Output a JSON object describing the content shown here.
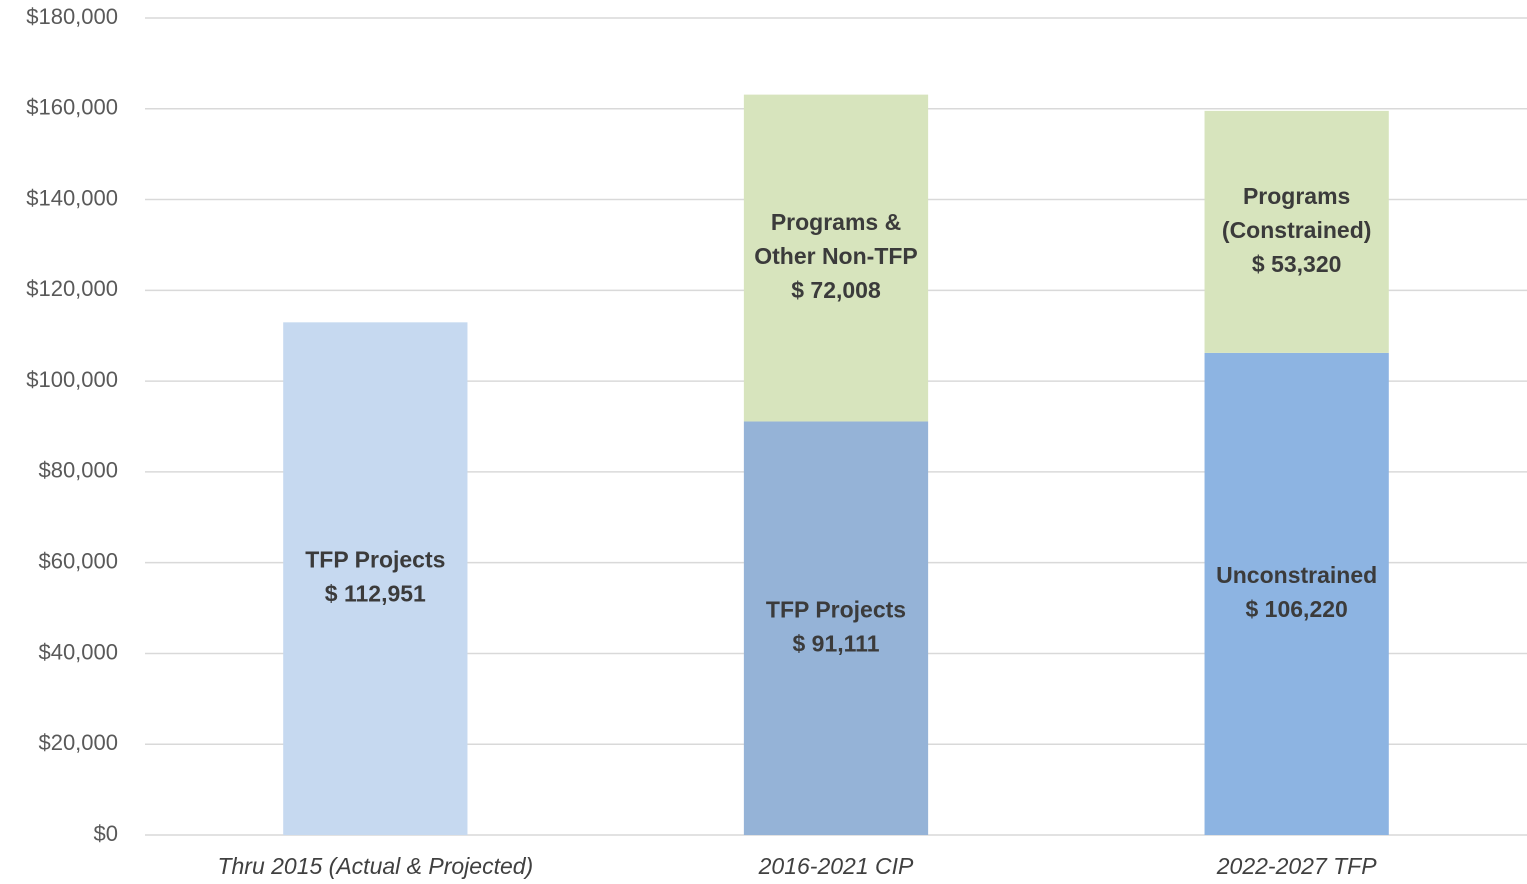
{
  "chart_data": {
    "type": "stacked_bar",
    "categories": [
      "Thru 2015 (Actual & Projected)",
      "2016-2021 CIP",
      "2022-2027 TFP"
    ],
    "bars": [
      {
        "segments": [
          {
            "name_lines": [
              "TFP Projects"
            ],
            "value": 112951,
            "value_label": "$ 112,951",
            "color": "#c6d9f0"
          }
        ]
      },
      {
        "segments": [
          {
            "name_lines": [
              "TFP Projects"
            ],
            "value": 91111,
            "value_label": "$ 91,111",
            "color": "#95b3d7"
          },
          {
            "name_lines": [
              "Programs &",
              "Other Non-TFP"
            ],
            "value": 72008,
            "value_label": "$ 72,008",
            "color": "#d7e4bd"
          }
        ]
      },
      {
        "segments": [
          {
            "name_lines": [
              "Unconstrained"
            ],
            "value": 106220,
            "value_label": "$ 106,220",
            "color": "#8db4e2"
          },
          {
            "name_lines": [
              "Programs",
              "(Constrained)"
            ],
            "value": 53320,
            "value_label": "$ 53,320",
            "color": "#d7e4bd"
          }
        ]
      }
    ],
    "ylim": [
      0,
      180000
    ],
    "yticks": [
      {
        "value": 0,
        "label": "$0"
      },
      {
        "value": 20000,
        "label": "$20,000"
      },
      {
        "value": 40000,
        "label": "$40,000"
      },
      {
        "value": 60000,
        "label": "$60,000"
      },
      {
        "value": 80000,
        "label": "$80,000"
      },
      {
        "value": 100000,
        "label": "$100,000"
      },
      {
        "value": 120000,
        "label": "$120,000"
      },
      {
        "value": 140000,
        "label": "$140,000"
      },
      {
        "value": 160000,
        "label": "$160,000"
      },
      {
        "value": 180000,
        "label": "$180,000"
      }
    ],
    "grid": true
  }
}
